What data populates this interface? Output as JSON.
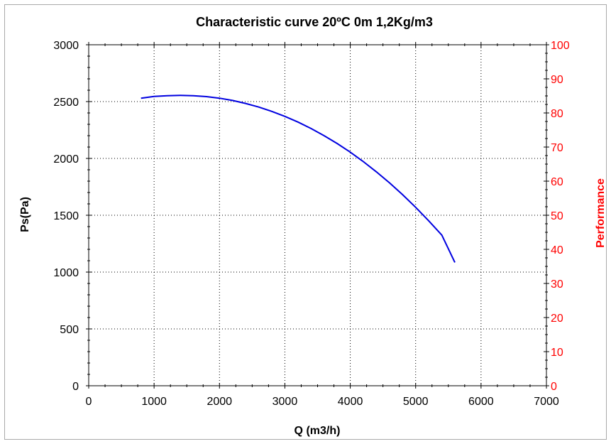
{
  "chart_data": {
    "type": "line",
    "title": "Characteristic curve 20ºC 0m 1,2Kg/m3",
    "xlabel": "Q (m3/h)",
    "ylabel": "Ps(Pa)",
    "y2label": "Performance",
    "xlim": [
      0,
      7000
    ],
    "ylim": [
      0,
      3000
    ],
    "y2lim": [
      0,
      100
    ],
    "xticks": [
      "0",
      "1000",
      "2000",
      "3000",
      "4000",
      "5000",
      "6000",
      "7000"
    ],
    "yticks": [
      "0",
      "500",
      "1000",
      "1500",
      "2000",
      "2500",
      "3000"
    ],
    "y2ticks": [
      "0",
      "10",
      "20",
      "30",
      "40",
      "50",
      "60",
      "70",
      "80",
      "90",
      "100"
    ],
    "grid": true,
    "series": [
      {
        "axis": "left",
        "color": "#0000e0",
        "x": [
          800,
          1000,
          1200,
          1400,
          1600,
          1800,
          2000,
          2200,
          2400,
          2600,
          2800,
          3000,
          3200,
          3400,
          3600,
          3800,
          4000,
          4200,
          4400,
          4600,
          4800,
          5000,
          5200,
          5400,
          5600
        ],
        "y": [
          2530,
          2545,
          2552,
          2555,
          2552,
          2544,
          2530,
          2510,
          2484,
          2452,
          2414,
          2370,
          2320,
          2263,
          2200,
          2131,
          2055,
          1972,
          1882,
          1785,
          1681,
          1570,
          1451,
          1325,
          1085
        ]
      }
    ],
    "colors": {
      "left_axis": "#000000",
      "right_axis": "#ff0000",
      "curve": "#0000e0"
    }
  }
}
